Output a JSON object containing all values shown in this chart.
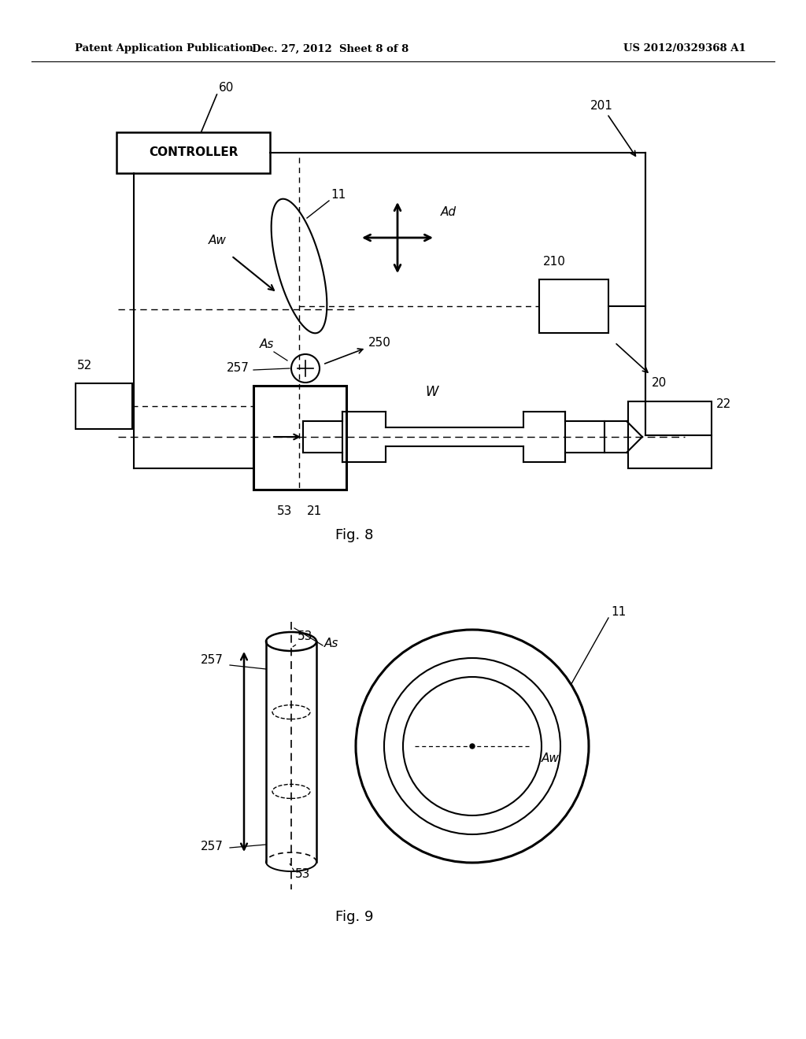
{
  "bg_color": "#ffffff",
  "header_left": "Patent Application Publication",
  "header_center": "Dec. 27, 2012  Sheet 8 of 8",
  "header_right": "US 2012/0329368 A1",
  "fig8_label": "Fig. 8",
  "fig9_label": "Fig. 9"
}
